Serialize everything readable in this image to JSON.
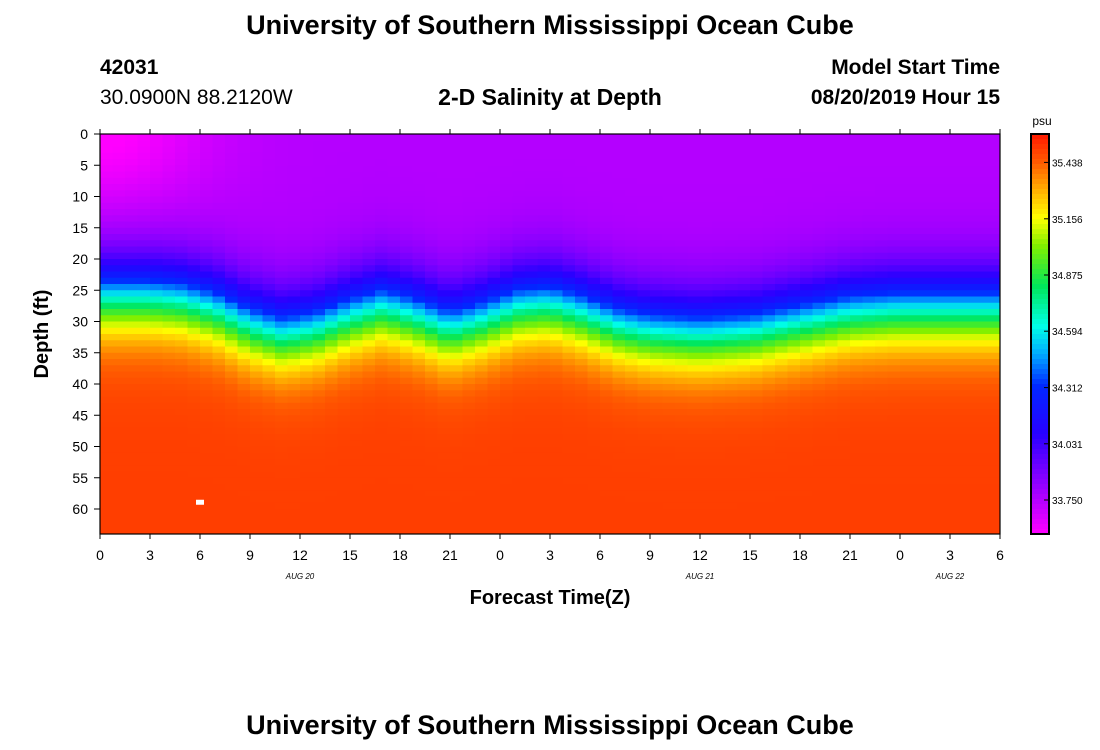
{
  "header": {
    "title": "University of Southern Mississippi Ocean Cube",
    "station_id": "42031",
    "station_location": "30.0900N 88.2120W",
    "plot_title": "2-D Salinity at Depth",
    "model_start_label": "Model Start Time",
    "model_start_value": "08/20/2019 Hour 15"
  },
  "footer": {
    "title": "University of Southern Mississippi Ocean Cube"
  },
  "chart_data": {
    "type": "heatmap",
    "title": "2-D Salinity at Depth",
    "xlabel": "Forecast Time(Z)",
    "ylabel": "Depth (ft)",
    "x_ticks": [
      "0",
      "3",
      "6",
      "9",
      "12",
      "15",
      "18",
      "21",
      "0",
      "3",
      "6",
      "9",
      "12",
      "15",
      "18",
      "21",
      "0",
      "3",
      "6"
    ],
    "x_hours": [
      0,
      3,
      6,
      9,
      12,
      15,
      18,
      21,
      24,
      27,
      30,
      33,
      36,
      39,
      42,
      45,
      48,
      51,
      54
    ],
    "x_range": [
      0,
      54
    ],
    "date_labels": [
      {
        "label": "AUG 20",
        "hour": 12
      },
      {
        "label": "AUG 21",
        "hour": 36
      },
      {
        "label": "AUG 22",
        "hour": 51
      }
    ],
    "y_ticks": [
      0,
      5,
      10,
      15,
      20,
      25,
      30,
      35,
      40,
      45,
      50,
      55,
      60
    ],
    "y_range": [
      0,
      64
    ],
    "colorbar": {
      "unit": "psu",
      "range": [
        33.58,
        35.58
      ],
      "ticks": [
        "35.438",
        "35.156",
        "34.875",
        "34.594",
        "34.312",
        "34.031",
        "33.750"
      ]
    },
    "surface_salinity": 33.75,
    "bottom_salinity": 35.5,
    "halocline_depth_by_hour": [
      [
        0,
        26
      ],
      [
        3,
        26
      ],
      [
        5,
        26.5
      ],
      [
        7,
        28
      ],
      [
        9,
        30.5
      ],
      [
        11,
        32
      ],
      [
        13,
        31
      ],
      [
        15,
        29
      ],
      [
        17,
        27.5
      ],
      [
        19,
        29
      ],
      [
        21,
        31
      ],
      [
        23,
        29.5
      ],
      [
        25,
        27.5
      ],
      [
        27,
        27
      ],
      [
        29,
        28.5
      ],
      [
        31,
        30.5
      ],
      [
        33,
        31.5
      ],
      [
        36,
        32
      ],
      [
        39,
        31.5
      ],
      [
        42,
        30
      ],
      [
        45,
        28.5
      ],
      [
        48,
        28
      ],
      [
        51,
        28
      ],
      [
        54,
        28
      ]
    ],
    "marker": {
      "hour": 6,
      "depth": 59
    }
  }
}
